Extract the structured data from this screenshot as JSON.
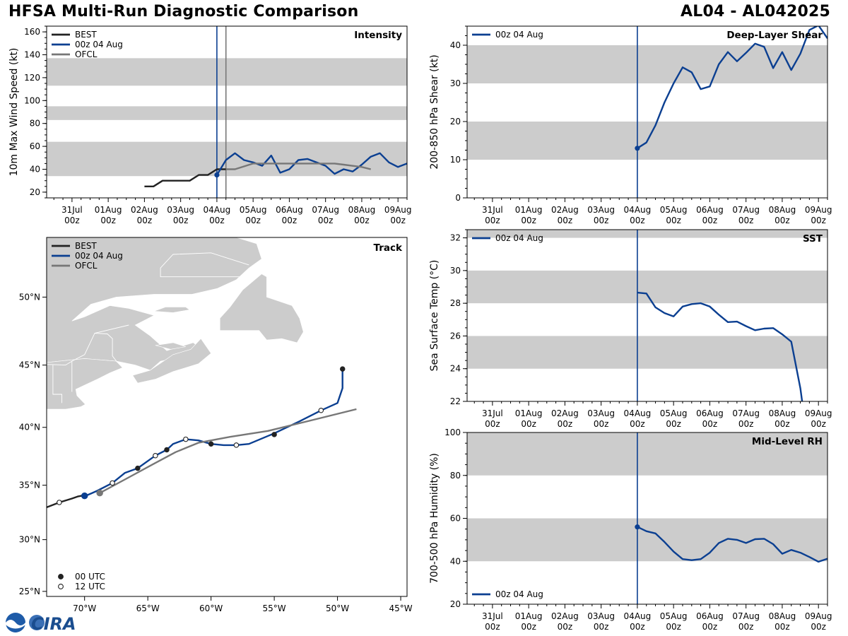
{
  "header": {
    "title_left": "HFSA Multi-Run Diagnostic Comparison",
    "title_right": "AL04 - AL042025"
  },
  "logo": {
    "text": "CIRA",
    "icon": "noaa-logo-icon"
  },
  "colors": {
    "best": "#222222",
    "run": "#0b3f91",
    "ofcl": "#777777",
    "band": "#cccccc",
    "land": "#cccccc",
    "border": "#ffffff"
  },
  "time_axis": {
    "tick_labels": [
      [
        "31Jul",
        "00z"
      ],
      [
        "01Aug",
        "00z"
      ],
      [
        "02Aug",
        "00z"
      ],
      [
        "03Aug",
        "00z"
      ],
      [
        "04Aug",
        "00z"
      ],
      [
        "05Aug",
        "00z"
      ],
      [
        "06Aug",
        "00z"
      ],
      [
        "07Aug",
        "00z"
      ],
      [
        "08Aug",
        "00z"
      ],
      [
        "09Aug",
        "00z"
      ]
    ],
    "tick_days": [
      0,
      1,
      2,
      3,
      4,
      5,
      6,
      7,
      8,
      9
    ],
    "xlim": [
      -0.7,
      9.25
    ]
  },
  "chart_data": [
    {
      "id": "intensity",
      "type": "line",
      "title": "Intensity",
      "ylabel": "10m Max Wind Speed (kt)",
      "xlabel": "",
      "ylim": [
        15,
        165
      ],
      "yticks": [
        20,
        40,
        60,
        80,
        100,
        120,
        140,
        160
      ],
      "bands": [
        [
          34,
          64
        ],
        [
          83,
          95
        ],
        [
          113,
          137
        ]
      ],
      "vlines": [
        {
          "x": 4.0,
          "color": "run"
        },
        {
          "x": 4.25,
          "color": "ofcl"
        }
      ],
      "legend": [
        "BEST",
        "00z 04 Aug",
        "OFCL"
      ],
      "legend_loc": "top-left",
      "series": [
        {
          "name": "BEST",
          "color": "best",
          "x": [
            2.0,
            2.25,
            2.5,
            2.75,
            3.0,
            3.25,
            3.5,
            3.75,
            4.0,
            4.25
          ],
          "y": [
            25,
            25,
            30,
            30,
            30,
            30,
            35,
            35,
            40,
            40
          ]
        },
        {
          "name": "00z 04 Aug",
          "color": "run",
          "x": [
            4.0,
            4.25,
            4.5,
            4.75,
            5.0,
            5.25,
            5.5,
            5.75,
            6.0,
            6.25,
            6.5,
            6.75,
            7.0,
            7.25,
            7.5,
            7.75,
            8.0,
            8.25,
            8.5,
            8.75,
            9.0,
            9.25
          ],
          "y": [
            35,
            48,
            54,
            48,
            46,
            43,
            52,
            37,
            40,
            48,
            49,
            46,
            43,
            36,
            40,
            38,
            44,
            51,
            54,
            46,
            42,
            45
          ]
        },
        {
          "name": "OFCL",
          "color": "ofcl",
          "x": [
            4.25,
            4.5,
            5.0,
            5.5,
            6.0,
            6.5,
            7.0,
            7.25,
            7.5,
            8.0,
            8.25
          ],
          "y": [
            40,
            40,
            45,
            45,
            45,
            45,
            45,
            45,
            44,
            42,
            40
          ]
        }
      ],
      "markers": [
        {
          "x": 4.0,
          "y": 35,
          "color": "run"
        }
      ]
    },
    {
      "id": "shear",
      "type": "line",
      "title": "Deep-Layer Shear",
      "ylabel": "200-850 hPa Shear (kt)",
      "xlabel": "",
      "ylim": [
        0,
        45
      ],
      "yticks": [
        0,
        10,
        20,
        30,
        40
      ],
      "bands": [
        [
          10,
          20
        ],
        [
          30,
          40
        ]
      ],
      "vlines": [
        {
          "x": 4.0,
          "color": "run"
        }
      ],
      "legend": [
        "00z 04 Aug"
      ],
      "legend_loc": "top-left",
      "series": [
        {
          "name": "00z 04 Aug",
          "color": "run",
          "x": [
            4.0,
            4.25,
            4.5,
            4.75,
            5.0,
            5.25,
            5.5,
            5.75,
            6.0,
            6.25,
            6.5,
            6.75,
            7.0,
            7.25,
            7.5,
            7.75,
            8.0,
            8.25,
            8.5,
            8.75,
            9.0,
            9.25
          ],
          "y": [
            13,
            14.5,
            19,
            25,
            30,
            34.2,
            32.9,
            28.5,
            29.2,
            35,
            38.2,
            35.8,
            38,
            40.4,
            39.6,
            34,
            38.2,
            33.5,
            37.8,
            44,
            45.2,
            41.8
          ]
        }
      ],
      "markers": [
        {
          "x": 4.0,
          "y": 13,
          "color": "run"
        }
      ]
    },
    {
      "id": "sst",
      "type": "line",
      "title": "SST",
      "ylabel": "Sea Surface Temp (°C)",
      "xlabel": "",
      "ylim": [
        22,
        32.5
      ],
      "yticks": [
        22,
        24,
        26,
        28,
        30,
        32
      ],
      "bands": [
        [
          24,
          26
        ],
        [
          28,
          30
        ],
        [
          32,
          32.5
        ]
      ],
      "vlines": [
        {
          "x": 4.0,
          "color": "run"
        }
      ],
      "legend": [
        "00z 04 Aug"
      ],
      "legend_loc": "top-left",
      "series": [
        {
          "name": "00z 04 Aug",
          "color": "run",
          "x": [
            4.0,
            4.25,
            4.5,
            4.75,
            5.0,
            5.25,
            5.5,
            5.75,
            6.0,
            6.25,
            6.5,
            6.75,
            7.0,
            7.25,
            7.5,
            7.75,
            8.0,
            8.25,
            8.5,
            8.55
          ],
          "y": [
            28.65,
            28.6,
            27.75,
            27.4,
            27.2,
            27.8,
            27.95,
            28.0,
            27.8,
            27.3,
            26.85,
            26.88,
            26.6,
            26.35,
            26.45,
            26.48,
            26.1,
            25.65,
            22.8,
            22.0
          ]
        }
      ],
      "markers": []
    },
    {
      "id": "rh",
      "type": "line",
      "title": "Mid-Level RH",
      "ylabel": "700-500 hPa Humidity (%)",
      "xlabel": "",
      "ylim": [
        20,
        100
      ],
      "yticks": [
        20,
        40,
        60,
        80,
        100
      ],
      "bands": [
        [
          40,
          60
        ],
        [
          80,
          100
        ]
      ],
      "vlines": [
        {
          "x": 4.0,
          "color": "run"
        }
      ],
      "legend": [
        "00z 04 Aug"
      ],
      "legend_loc": "bottom-left",
      "series": [
        {
          "name": "00z 04 Aug",
          "color": "run",
          "x": [
            4.0,
            4.25,
            4.5,
            4.75,
            5.0,
            5.25,
            5.5,
            5.75,
            6.0,
            6.25,
            6.5,
            6.75,
            7.0,
            7.25,
            7.5,
            7.75,
            8.0,
            8.25,
            8.5,
            8.75,
            9.0,
            9.25
          ],
          "y": [
            56,
            54,
            53,
            49,
            44.5,
            41,
            40.5,
            41,
            44,
            48.5,
            50.5,
            50,
            48.5,
            50.3,
            50.5,
            48,
            43.5,
            45.3,
            44,
            42,
            39.8,
            41.2
          ]
        }
      ],
      "markers": [
        {
          "x": 4.0,
          "y": 56,
          "color": "run"
        }
      ]
    },
    {
      "id": "track",
      "type": "line",
      "title": "Track",
      "xlabel": "",
      "ylabel": "",
      "xlim": [
        -73,
        -44.5
      ],
      "ylim": [
        24.5,
        54
      ],
      "xticks": [
        -70,
        -65,
        -60,
        -55,
        -50,
        -45
      ],
      "xtick_labels": [
        "70°W",
        "65°W",
        "60°W",
        "55°W",
        "50°W",
        "45°W"
      ],
      "yticks": [
        25,
        30,
        35,
        40,
        45,
        50
      ],
      "ytick_labels": [
        "25°N",
        "30°N",
        "35°N",
        "40°N",
        "45°N",
        "50°N"
      ],
      "legend": [
        "BEST",
        "00z 04 Aug",
        "OFCL"
      ],
      "legend_loc": "top-left",
      "marker_legend": [
        "00 UTC",
        "12 UTC"
      ],
      "marker_legend_loc": "bottom-left",
      "series": [
        {
          "name": "BEST",
          "color": "best",
          "lon": [
            -73.0,
            -72.0,
            -71.0,
            -70.5,
            -70.0
          ],
          "lat": [
            33.0,
            33.45,
            33.8,
            34.0,
            34.1
          ]
        },
        {
          "name": "00z 04 Aug",
          "color": "run",
          "lon": [
            -70.0,
            -69.0,
            -67.8,
            -66.8,
            -65.8,
            -64.4,
            -63.5,
            -63.0,
            -62.0,
            -61.0,
            -60.0,
            -59.0,
            -58.0,
            -57.0,
            -55.0,
            -53.0,
            -51.3,
            -50.0,
            -49.6,
            -49.6
          ],
          "lat": [
            34.0,
            34.5,
            35.2,
            36.1,
            36.5,
            37.6,
            38.1,
            38.6,
            39.0,
            38.9,
            38.6,
            38.5,
            38.5,
            38.6,
            39.5,
            40.5,
            41.4,
            42.0,
            43.2,
            44.7
          ]
        },
        {
          "name": "OFCL",
          "color": "ofcl",
          "lon": [
            -68.8,
            -66.5,
            -64.5,
            -62.8,
            -61.0,
            -58.5,
            -55.5,
            -52.0,
            -48.5
          ],
          "lat": [
            34.3,
            35.7,
            36.9,
            37.9,
            38.7,
            39.2,
            39.7,
            40.6,
            41.5
          ]
        }
      ],
      "points": [
        {
          "lon": -72.0,
          "lat": 33.45,
          "kind": "12 UTC"
        },
        {
          "lon": -70.0,
          "lat": 34.05,
          "kind": "run"
        },
        {
          "lon": -68.8,
          "lat": 34.3,
          "kind": "ofcl"
        },
        {
          "lon": -67.8,
          "lat": 35.2,
          "kind": "12 UTC"
        },
        {
          "lon": -65.8,
          "lat": 36.5,
          "kind": "00 UTC"
        },
        {
          "lon": -64.4,
          "lat": 37.6,
          "kind": "12 UTC"
        },
        {
          "lon": -63.5,
          "lat": 38.1,
          "kind": "00 UTC"
        },
        {
          "lon": -62.0,
          "lat": 39.0,
          "kind": "12 UTC"
        },
        {
          "lon": -60.0,
          "lat": 38.6,
          "kind": "00 UTC"
        },
        {
          "lon": -58.0,
          "lat": 38.5,
          "kind": "12 UTC"
        },
        {
          "lon": -55.0,
          "lat": 39.4,
          "kind": "00 UTC"
        },
        {
          "lon": -51.3,
          "lat": 41.4,
          "kind": "12 UTC"
        },
        {
          "lon": -49.6,
          "lat": 44.7,
          "kind": "00 UTC"
        }
      ],
      "land": [
        [
          [
            -73.0,
            45.2
          ],
          [
            -70.0,
            45.5
          ],
          [
            -67.5,
            45.3
          ],
          [
            -66.0,
            45.0
          ],
          [
            -64.8,
            44.6
          ],
          [
            -64.0,
            45.3
          ],
          [
            -62.0,
            45.7
          ],
          [
            -60.5,
            46.0
          ],
          [
            -61.4,
            46.7
          ],
          [
            -63.5,
            46.1
          ],
          [
            -64.8,
            47.2
          ],
          [
            -66.0,
            48.0
          ],
          [
            -64.5,
            48.7
          ],
          [
            -66.5,
            49.2
          ],
          [
            -68.0,
            49.4
          ],
          [
            -70.0,
            48.6
          ],
          [
            -71.0,
            48.3
          ],
          [
            -69.5,
            49.5
          ],
          [
            -67.5,
            50.0
          ],
          [
            -64.5,
            50.2
          ],
          [
            -61.5,
            50.2
          ],
          [
            -59.5,
            50.6
          ],
          [
            -58.0,
            51.2
          ],
          [
            -57.0,
            52.0
          ],
          [
            -56.0,
            52.6
          ],
          [
            -56.4,
            53.6
          ],
          [
            -58.0,
            54.0
          ],
          [
            -73.0,
            54.0
          ]
        ],
        [
          [
            -64.8,
            44.6
          ],
          [
            -66.2,
            44.2
          ],
          [
            -65.8,
            43.6
          ],
          [
            -64.4,
            43.9
          ],
          [
            -63.0,
            44.5
          ],
          [
            -61.0,
            45.1
          ],
          [
            -60.0,
            45.9
          ],
          [
            -60.8,
            47.0
          ],
          [
            -61.6,
            46.2
          ],
          [
            -63.0,
            45.8
          ]
        ],
        [
          [
            -59.3,
            47.6
          ],
          [
            -59.3,
            48.5
          ],
          [
            -58.5,
            49.3
          ],
          [
            -57.5,
            50.5
          ],
          [
            -56.0,
            51.6
          ],
          [
            -55.6,
            51.4
          ],
          [
            -55.6,
            50.0
          ],
          [
            -53.6,
            49.4
          ],
          [
            -53.0,
            48.5
          ],
          [
            -52.7,
            47.5
          ],
          [
            -53.2,
            46.7
          ],
          [
            -54.4,
            47.0
          ],
          [
            -55.6,
            46.9
          ],
          [
            -56.2,
            47.6
          ],
          [
            -57.7,
            47.6
          ]
        ],
        [
          [
            -64.5,
            49.0
          ],
          [
            -63.6,
            49.3
          ],
          [
            -62.0,
            49.3
          ],
          [
            -61.7,
            49.1
          ],
          [
            -63.0,
            48.9
          ]
        ],
        [
          [
            -64.4,
            46.5
          ],
          [
            -63.2,
            46.2
          ],
          [
            -62.0,
            46.4
          ],
          [
            -63.0,
            46.7
          ]
        ],
        [
          [
            -73.0,
            41.5
          ],
          [
            -71.5,
            41.5
          ],
          [
            -70.3,
            41.7
          ],
          [
            -69.95,
            41.9
          ],
          [
            -70.6,
            42.6
          ],
          [
            -70.7,
            43.1
          ],
          [
            -69.0,
            43.9
          ],
          [
            -68.0,
            44.4
          ],
          [
            -67.0,
            44.8
          ],
          [
            -67.5,
            45.3
          ],
          [
            -70.0,
            45.5
          ],
          [
            -73.0,
            45.2
          ]
        ]
      ],
      "borders": [
        [
          [
            -73.0,
            45.05
          ],
          [
            -71.5,
            45.0
          ],
          [
            -71.0,
            45.3
          ],
          [
            -70.0,
            45.8
          ],
          [
            -69.2,
            47.4
          ],
          [
            -68.2,
            47.35
          ],
          [
            -67.8,
            47.0
          ],
          [
            -67.8,
            45.7
          ],
          [
            -67.4,
            45.2
          ]
        ],
        [
          [
            -71.8,
            42.0
          ],
          [
            -71.8,
            42.7
          ],
          [
            -72.5,
            42.7
          ],
          [
            -72.5,
            45.0
          ]
        ],
        [
          [
            -71.0,
            42.9
          ],
          [
            -71.0,
            45.3
          ]
        ],
        [
          [
            -69.2,
            47.4
          ],
          [
            -66.5,
            48.0
          ]
        ],
        [
          [
            -57.1,
            51.4
          ],
          [
            -64.0,
            51.4
          ],
          [
            -64.0,
            52.0
          ],
          [
            -63.0,
            52.9
          ],
          [
            -60.0,
            53.0
          ],
          [
            -57.0,
            52.2
          ]
        ]
      ]
    }
  ]
}
